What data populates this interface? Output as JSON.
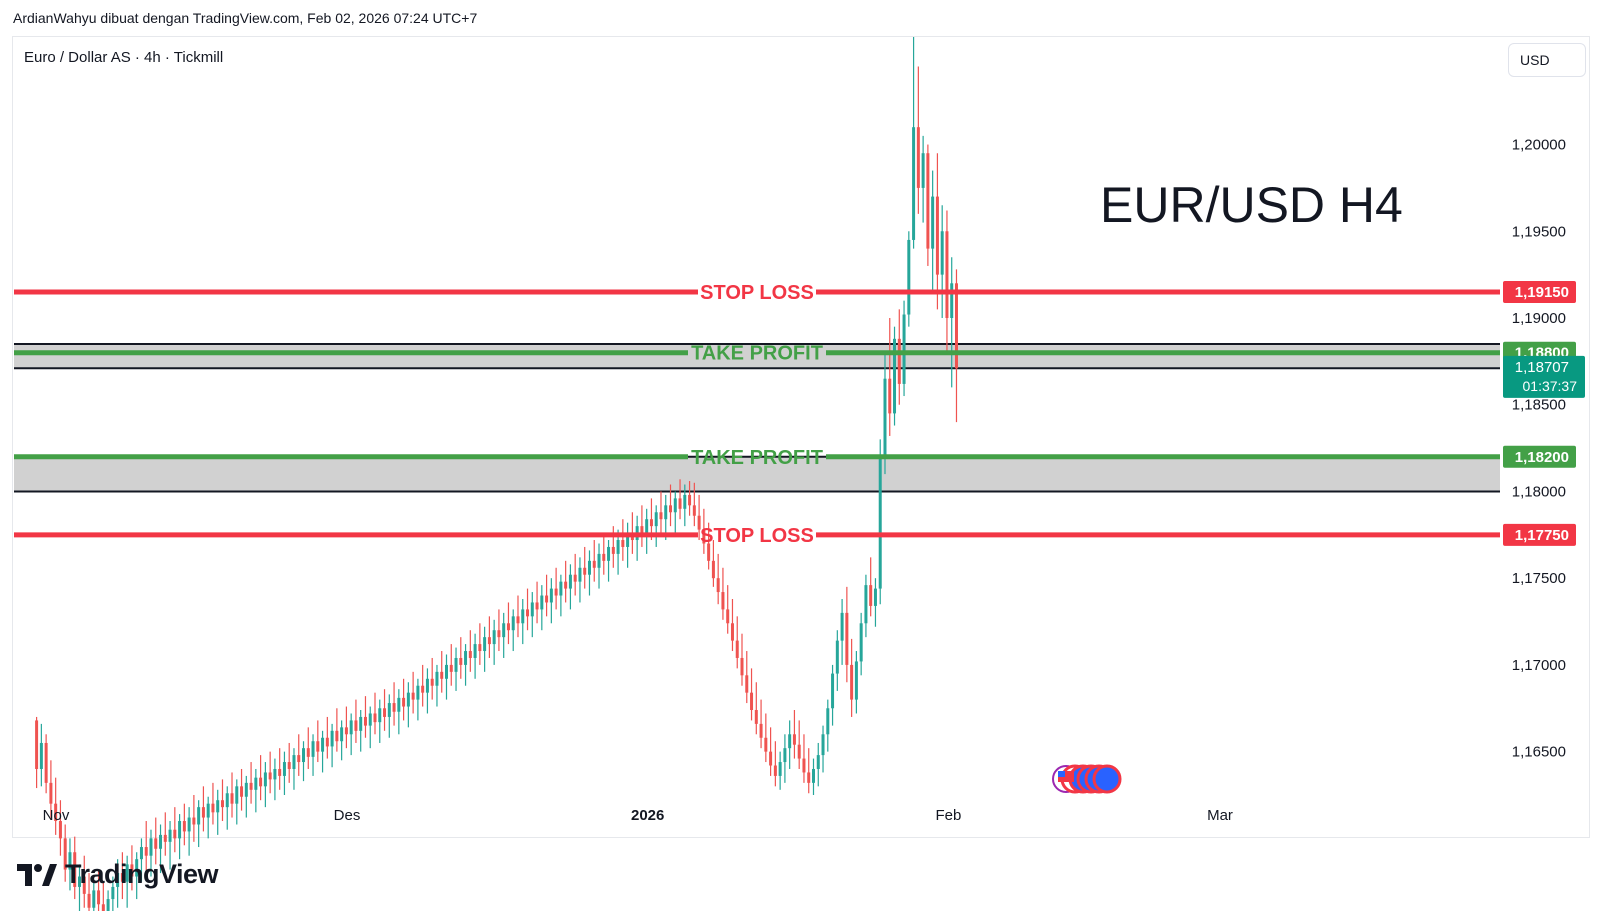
{
  "header": {
    "attribution": "ArdianWahyu dibuat dengan TradingView.com, Feb 02, 2026 07:24 UTC+7"
  },
  "brand": {
    "name": "TradingView"
  },
  "chart_data": {
    "type": "candlestick",
    "symbol_label": "Euro / Dollar AS · 4h · Tickmill",
    "currency_button": "USD",
    "big_title": "EUR/USD H4",
    "y_axis": {
      "range": [
        1.1625,
        1.2062
      ],
      "ticks": [
        {
          "value": 1.2,
          "label": "1,20000"
        },
        {
          "value": 1.195,
          "label": "1,19500"
        },
        {
          "value": 1.19,
          "label": "1,19000"
        },
        {
          "value": 1.185,
          "label": "1,18500"
        },
        {
          "value": 1.18,
          "label": "1,18000"
        },
        {
          "value": 1.175,
          "label": "1,17500"
        },
        {
          "value": 1.17,
          "label": "1,17000"
        },
        {
          "value": 1.165,
          "label": "1,16500"
        }
      ]
    },
    "x_axis": {
      "labels": [
        {
          "label": "Nov",
          "date": "2025-11-01"
        },
        {
          "label": "Des",
          "date": "2025-12-01"
        },
        {
          "label": "2026",
          "date": "2026-01-01",
          "bold": true
        },
        {
          "label": "Feb",
          "date": "2026-02-01"
        },
        {
          "label": "Mar",
          "date": "2026-03-01"
        }
      ]
    },
    "levels": [
      {
        "name": "STOP LOSS",
        "price": 1.1915,
        "price_label": "1,19150",
        "color": "#f23645",
        "style": "thick"
      },
      {
        "name": "TAKE PROFIT",
        "price": 1.188,
        "price_label": "1,18800",
        "color": "#43a047",
        "style": "thick"
      },
      {
        "name": "TAKE PROFIT",
        "price": 1.182,
        "price_label": "1,18200",
        "color": "#43a047",
        "style": "thick"
      },
      {
        "name": "STOP LOSS",
        "price": 1.1775,
        "price_label": "1,17750",
        "color": "#f23645",
        "style": "thick"
      }
    ],
    "zones": [
      {
        "from": 1.1871,
        "to": 1.1885,
        "color": "#d1d1d1"
      },
      {
        "from": 1.18,
        "to": 1.182,
        "color": "#d1d1d1"
      }
    ],
    "zone_lines": [
      1.1885,
      1.1871,
      1.182,
      1.18
    ],
    "current_price": {
      "price": 1.18707,
      "label": "1,18707",
      "countdown": "01:37:37",
      "color": "#089981"
    },
    "colors": {
      "up": "#26a69a",
      "down": "#ef5350"
    },
    "candles_4h_from_2025-10-30": [
      [
        1.1668,
        1.167,
        1.1629,
        1.164
      ],
      [
        1.164,
        1.1666,
        1.163,
        1.1655
      ],
      [
        1.1655,
        1.166,
        1.1626,
        1.1632
      ],
      [
        1.1632,
        1.1645,
        1.1612,
        1.162
      ],
      [
        1.162,
        1.1635,
        1.1602,
        1.161
      ],
      [
        1.161,
        1.1622,
        1.159,
        1.16
      ],
      [
        1.16,
        1.1608,
        1.1575,
        1.1582
      ],
      [
        1.1582,
        1.16,
        1.157,
        1.1592
      ],
      [
        1.1592,
        1.1601,
        1.1565,
        1.1572
      ],
      [
        1.1572,
        1.1585,
        1.1558,
        1.1578
      ],
      [
        1.1578,
        1.159,
        1.156,
        1.1568
      ],
      [
        1.1568,
        1.158,
        1.155,
        1.156
      ],
      [
        1.156,
        1.1575,
        1.1548,
        1.157
      ],
      [
        1.157,
        1.1582,
        1.1555,
        1.1562
      ],
      [
        1.1562,
        1.1575,
        1.1545,
        1.1555
      ],
      [
        1.1555,
        1.157,
        1.154,
        1.1565
      ],
      [
        1.1565,
        1.1578,
        1.155,
        1.1572
      ],
      [
        1.1572,
        1.1588,
        1.156,
        1.158
      ],
      [
        1.158,
        1.1592,
        1.1565,
        1.1575
      ],
      [
        1.1575,
        1.159,
        1.156,
        1.1585
      ],
      [
        1.1585,
        1.1596,
        1.157,
        1.1578
      ],
      [
        1.1578,
        1.1592,
        1.1565,
        1.1588
      ],
      [
        1.1588,
        1.16,
        1.1575,
        1.1595
      ],
      [
        1.1595,
        1.161,
        1.158,
        1.159
      ],
      [
        1.159,
        1.1605,
        1.1578,
        1.16
      ],
      [
        1.16,
        1.1612,
        1.1585,
        1.1594
      ],
      [
        1.1594,
        1.1608,
        1.158,
        1.1602
      ],
      [
        1.1602,
        1.1615,
        1.159,
        1.1598
      ],
      [
        1.1598,
        1.161,
        1.1582,
        1.1605
      ],
      [
        1.1605,
        1.1618,
        1.1592,
        1.16
      ],
      [
        1.16,
        1.1614,
        1.1588,
        1.161
      ],
      [
        1.161,
        1.162,
        1.1596,
        1.1604
      ],
      [
        1.1604,
        1.1618,
        1.159,
        1.1612
      ],
      [
        1.1612,
        1.1625,
        1.1598,
        1.1608
      ],
      [
        1.1608,
        1.1622,
        1.1595,
        1.1618
      ],
      [
        1.1618,
        1.163,
        1.1604,
        1.1612
      ],
      [
        1.1612,
        1.1624,
        1.16,
        1.162
      ],
      [
        1.162,
        1.1632,
        1.1608,
        1.1615
      ],
      [
        1.1615,
        1.1628,
        1.1602,
        1.1622
      ],
      [
        1.1622,
        1.1634,
        1.161,
        1.1618
      ],
      [
        1.1618,
        1.163,
        1.1605,
        1.1626
      ],
      [
        1.1626,
        1.1638,
        1.1612,
        1.162
      ],
      [
        1.162,
        1.1634,
        1.1608,
        1.163
      ],
      [
        1.163,
        1.164,
        1.1616,
        1.1624
      ],
      [
        1.1624,
        1.1636,
        1.1612,
        1.1632
      ],
      [
        1.1632,
        1.1644,
        1.162,
        1.1628
      ],
      [
        1.1628,
        1.164,
        1.1615,
        1.1635
      ],
      [
        1.1635,
        1.1648,
        1.1622,
        1.163
      ],
      [
        1.163,
        1.1644,
        1.1618,
        1.1638
      ],
      [
        1.1638,
        1.165,
        1.1626,
        1.1634
      ],
      [
        1.1634,
        1.1646,
        1.1622,
        1.164
      ],
      [
        1.164,
        1.1652,
        1.1628,
        1.1636
      ],
      [
        1.1636,
        1.165,
        1.1625,
        1.1644
      ],
      [
        1.1644,
        1.1655,
        1.1632,
        1.164
      ],
      [
        1.164,
        1.1652,
        1.1628,
        1.1648
      ],
      [
        1.1648,
        1.166,
        1.1636,
        1.1644
      ],
      [
        1.1644,
        1.1656,
        1.1633,
        1.1652
      ],
      [
        1.1652,
        1.1664,
        1.164,
        1.1647
      ],
      [
        1.1647,
        1.166,
        1.1636,
        1.1656
      ],
      [
        1.1656,
        1.1668,
        1.1644,
        1.165
      ],
      [
        1.165,
        1.1662,
        1.1638,
        1.1658
      ],
      [
        1.1658,
        1.167,
        1.1646,
        1.1653
      ],
      [
        1.1653,
        1.1666,
        1.1641,
        1.1662
      ],
      [
        1.1662,
        1.1675,
        1.165,
        1.1656
      ],
      [
        1.1656,
        1.1668,
        1.1645,
        1.1664
      ],
      [
        1.1664,
        1.1676,
        1.1652,
        1.166
      ],
      [
        1.166,
        1.1672,
        1.1648,
        1.1668
      ],
      [
        1.1668,
        1.168,
        1.1655,
        1.1662
      ],
      [
        1.1662,
        1.1674,
        1.165,
        1.167
      ],
      [
        1.167,
        1.1682,
        1.1658,
        1.1665
      ],
      [
        1.1665,
        1.1676,
        1.1652,
        1.1672
      ],
      [
        1.1672,
        1.1684,
        1.166,
        1.1667
      ],
      [
        1.1667,
        1.168,
        1.1655,
        1.1675
      ],
      [
        1.1675,
        1.1686,
        1.1662,
        1.167
      ],
      [
        1.167,
        1.1683,
        1.1658,
        1.1678
      ],
      [
        1.1678,
        1.169,
        1.1665,
        1.1673
      ],
      [
        1.1673,
        1.1686,
        1.166,
        1.1681
      ],
      [
        1.1681,
        1.1692,
        1.1668,
        1.1676
      ],
      [
        1.1676,
        1.169,
        1.1664,
        1.1684
      ],
      [
        1.1684,
        1.1696,
        1.1672,
        1.168
      ],
      [
        1.168,
        1.1692,
        1.1668,
        1.1688
      ],
      [
        1.1688,
        1.17,
        1.1676,
        1.1684
      ],
      [
        1.1684,
        1.1698,
        1.1672,
        1.1692
      ],
      [
        1.1692,
        1.1704,
        1.168,
        1.1688
      ],
      [
        1.1688,
        1.17,
        1.1676,
        1.1696
      ],
      [
        1.1696,
        1.1708,
        1.1684,
        1.1692
      ],
      [
        1.1692,
        1.1706,
        1.168,
        1.17
      ],
      [
        1.17,
        1.1712,
        1.1688,
        1.1696
      ],
      [
        1.1696,
        1.171,
        1.1685,
        1.1704
      ],
      [
        1.1704,
        1.1716,
        1.1692,
        1.17
      ],
      [
        1.17,
        1.1712,
        1.1688,
        1.1708
      ],
      [
        1.1708,
        1.172,
        1.1696,
        1.1704
      ],
      [
        1.1704,
        1.1718,
        1.1692,
        1.1712
      ],
      [
        1.1712,
        1.1724,
        1.17,
        1.1708
      ],
      [
        1.1708,
        1.1722,
        1.1696,
        1.1716
      ],
      [
        1.1716,
        1.1728,
        1.1704,
        1.1712
      ],
      [
        1.1712,
        1.1726,
        1.17,
        1.172
      ],
      [
        1.172,
        1.1732,
        1.1708,
        1.1716
      ],
      [
        1.1716,
        1.173,
        1.1704,
        1.1724
      ],
      [
        1.1724,
        1.1736,
        1.1712,
        1.172
      ],
      [
        1.172,
        1.1732,
        1.1708,
        1.1728
      ],
      [
        1.1728,
        1.174,
        1.1716,
        1.1724
      ],
      [
        1.1724,
        1.1738,
        1.1712,
        1.1732
      ],
      [
        1.1732,
        1.1744,
        1.172,
        1.1728
      ],
      [
        1.1728,
        1.1742,
        1.1716,
        1.1736
      ],
      [
        1.1736,
        1.1748,
        1.1724,
        1.1732
      ],
      [
        1.1732,
        1.1746,
        1.172,
        1.174
      ],
      [
        1.174,
        1.1752,
        1.1728,
        1.1736
      ],
      [
        1.1736,
        1.175,
        1.1724,
        1.1744
      ],
      [
        1.1744,
        1.1756,
        1.1732,
        1.174
      ],
      [
        1.174,
        1.1752,
        1.1728,
        1.1748
      ],
      [
        1.1748,
        1.176,
        1.1736,
        1.1744
      ],
      [
        1.1744,
        1.1758,
        1.1732,
        1.1752
      ],
      [
        1.1752,
        1.1764,
        1.174,
        1.1748
      ],
      [
        1.1748,
        1.1762,
        1.1736,
        1.1756
      ],
      [
        1.1756,
        1.1768,
        1.1744,
        1.1752
      ],
      [
        1.1752,
        1.1766,
        1.174,
        1.176
      ],
      [
        1.176,
        1.1772,
        1.1748,
        1.1756
      ],
      [
        1.1756,
        1.177,
        1.1744,
        1.1764
      ],
      [
        1.1764,
        1.1776,
        1.1752,
        1.176
      ],
      [
        1.176,
        1.1772,
        1.1748,
        1.1768
      ],
      [
        1.1768,
        1.178,
        1.1756,
        1.1764
      ],
      [
        1.1764,
        1.1778,
        1.1752,
        1.1772
      ],
      [
        1.1772,
        1.1784,
        1.176,
        1.1768
      ],
      [
        1.1768,
        1.1782,
        1.1756,
        1.1776
      ],
      [
        1.1776,
        1.1788,
        1.1764,
        1.1772
      ],
      [
        1.1772,
        1.1786,
        1.176,
        1.178
      ],
      [
        1.178,
        1.1792,
        1.1768,
        1.1776
      ],
      [
        1.1776,
        1.179,
        1.1764,
        1.1784
      ],
      [
        1.1784,
        1.1796,
        1.1772,
        1.178
      ],
      [
        1.178,
        1.1792,
        1.1768,
        1.1788
      ],
      [
        1.1788,
        1.18,
        1.1776,
        1.1784
      ],
      [
        1.1784,
        1.1798,
        1.1772,
        1.1792
      ],
      [
        1.1792,
        1.1804,
        1.178,
        1.1788
      ],
      [
        1.1788,
        1.18,
        1.1776,
        1.1796
      ],
      [
        1.1796,
        1.1807,
        1.1784,
        1.179
      ],
      [
        1.179,
        1.1804,
        1.178,
        1.1798
      ],
      [
        1.1798,
        1.1806,
        1.1786,
        1.1792
      ],
      [
        1.1792,
        1.1805,
        1.178,
        1.1786
      ],
      [
        1.1786,
        1.1798,
        1.1772,
        1.1778
      ],
      [
        1.1778,
        1.179,
        1.1764,
        1.177
      ],
      [
        1.177,
        1.1782,
        1.1755,
        1.176
      ],
      [
        1.176,
        1.1772,
        1.1745,
        1.175
      ],
      [
        1.175,
        1.1764,
        1.1735,
        1.1742
      ],
      [
        1.1742,
        1.1756,
        1.1726,
        1.1732
      ],
      [
        1.1732,
        1.1746,
        1.1718,
        1.1724
      ],
      [
        1.1724,
        1.1738,
        1.1708,
        1.1714
      ],
      [
        1.1714,
        1.1728,
        1.1698,
        1.1704
      ],
      [
        1.1704,
        1.1718,
        1.1688,
        1.1694
      ],
      [
        1.1694,
        1.1708,
        1.1678,
        1.1684
      ],
      [
        1.1684,
        1.1698,
        1.1668,
        1.1674
      ],
      [
        1.1674,
        1.169,
        1.166,
        1.1666
      ],
      [
        1.1666,
        1.168,
        1.1652,
        1.1658
      ],
      [
        1.1658,
        1.1672,
        1.1644,
        1.165
      ],
      [
        1.165,
        1.1664,
        1.1636,
        1.1642
      ],
      [
        1.1642,
        1.1656,
        1.163,
        1.1636
      ],
      [
        1.1636,
        1.165,
        1.1628,
        1.1644
      ],
      [
        1.1644,
        1.166,
        1.1632,
        1.1652
      ],
      [
        1.1652,
        1.1668,
        1.164,
        1.166
      ],
      [
        1.166,
        1.1674,
        1.1646,
        1.1654
      ],
      [
        1.1654,
        1.1668,
        1.164,
        1.1646
      ],
      [
        1.1646,
        1.166,
        1.1632,
        1.1638
      ],
      [
        1.1638,
        1.1652,
        1.1626,
        1.1632
      ],
      [
        1.1632,
        1.1646,
        1.1625,
        1.164
      ],
      [
        1.164,
        1.1655,
        1.163,
        1.1648
      ],
      [
        1.1648,
        1.1665,
        1.1638,
        1.166
      ],
      [
        1.166,
        1.168,
        1.165,
        1.1675
      ],
      [
        1.1675,
        1.17,
        1.1665,
        1.1695
      ],
      [
        1.1695,
        1.172,
        1.1685,
        1.1714
      ],
      [
        1.1714,
        1.1738,
        1.17,
        1.173
      ],
      [
        1.173,
        1.1745,
        1.169,
        1.17
      ],
      [
        1.17,
        1.1715,
        1.167,
        1.168
      ],
      [
        1.168,
        1.1708,
        1.1672,
        1.1702
      ],
      [
        1.1702,
        1.173,
        1.1694,
        1.1724
      ],
      [
        1.1724,
        1.1752,
        1.1716,
        1.1746
      ],
      [
        1.1746,
        1.1762,
        1.1728,
        1.1734
      ],
      [
        1.1734,
        1.175,
        1.1722,
        1.1744
      ],
      [
        1.1744,
        1.183,
        1.1735,
        1.182
      ],
      [
        1.182,
        1.188,
        1.181,
        1.1865
      ],
      [
        1.1865,
        1.19,
        1.1832,
        1.1845
      ],
      [
        1.1845,
        1.1895,
        1.1838,
        1.1888
      ],
      [
        1.1888,
        1.1905,
        1.185,
        1.1862
      ],
      [
        1.1862,
        1.191,
        1.1855,
        1.1902
      ],
      [
        1.1902,
        1.195,
        1.1895,
        1.1945
      ],
      [
        1.1945,
        1.2062,
        1.194,
        1.201
      ],
      [
        1.201,
        1.2045,
        1.196,
        1.1975
      ],
      [
        1.1975,
        1.2005,
        1.1955,
        1.1995
      ],
      [
        1.1995,
        1.2,
        1.193,
        1.194
      ],
      [
        1.194,
        1.1985,
        1.1915,
        1.197
      ],
      [
        1.197,
        1.1995,
        1.1905,
        1.1925
      ],
      [
        1.1925,
        1.1965,
        1.19,
        1.195
      ],
      [
        1.195,
        1.1962,
        1.188,
        1.19
      ],
      [
        1.19,
        1.1935,
        1.186,
        1.192
      ],
      [
        1.192,
        1.1928,
        1.184,
        1.1871
      ]
    ]
  }
}
